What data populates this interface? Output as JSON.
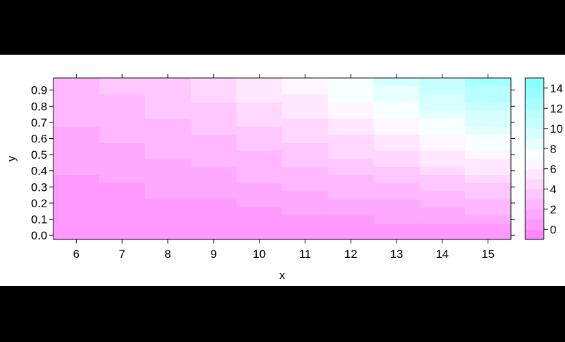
{
  "chart_data": {
    "type": "heatmap",
    "title": "",
    "xlabel": "x",
    "ylabel": "y",
    "x_ticks": [
      6,
      7,
      8,
      9,
      10,
      11,
      12,
      13,
      14,
      15
    ],
    "y_ticks": [
      "0.0",
      "0.1",
      "0.2",
      "0.3",
      "0.4",
      "0.5",
      "0.6",
      "0.7",
      "0.8",
      "0.9"
    ],
    "xlim": [
      5.5,
      15.5
    ],
    "ylim": [
      -0.025,
      0.975
    ],
    "y_values": [
      0.0,
      0.05,
      0.1,
      0.15,
      0.2,
      0.25,
      0.3,
      0.35,
      0.4,
      0.45,
      0.5,
      0.55,
      0.6,
      0.65,
      0.7,
      0.75,
      0.8,
      0.85,
      0.9,
      0.95
    ],
    "z_levels": [
      -1,
      0,
      1,
      2,
      3,
      4,
      5,
      6,
      7,
      8,
      9,
      10,
      11,
      12,
      13,
      14,
      15
    ],
    "colorbar_ticks": [
      0,
      2,
      4,
      6,
      8,
      10,
      12,
      14
    ],
    "color_low": "#ff80ff",
    "color_mid": "#ffffff",
    "color_high": "#80ffff",
    "color_midpoint": 7,
    "z_values": [
      [
        0.0,
        0.1,
        0.2,
        0.3,
        0.5,
        0.6,
        0.8,
        0.9,
        1.1,
        1.2,
        1.4,
        1.5,
        1.7,
        1.8,
        2.0,
        2.1,
        2.3,
        2.4,
        2.6,
        2.7
      ],
      [
        0.0,
        0.1,
        0.3,
        0.4,
        0.6,
        0.8,
        0.9,
        1.1,
        1.3,
        1.5,
        1.6,
        1.8,
        2.0,
        2.2,
        2.4,
        2.5,
        2.7,
        2.9,
        3.1,
        3.3
      ],
      [
        0.0,
        0.2,
        0.4,
        0.6,
        0.8,
        1.0,
        1.2,
        1.4,
        1.6,
        1.8,
        2.0,
        2.2,
        2.4,
        2.6,
        2.8,
        3.0,
        3.3,
        3.5,
        3.7,
        3.9
      ],
      [
        0.0,
        0.2,
        0.5,
        0.7,
        0.9,
        1.2,
        1.4,
        1.7,
        1.9,
        2.2,
        2.4,
        2.7,
        2.9,
        3.2,
        3.4,
        3.7,
        3.9,
        4.2,
        4.5,
        4.7
      ],
      [
        0.0,
        0.3,
        0.6,
        0.8,
        1.1,
        1.4,
        1.7,
        2.0,
        2.3,
        2.6,
        2.9,
        3.2,
        3.5,
        3.8,
        4.1,
        4.4,
        4.7,
        5.0,
        5.3,
        5.6
      ],
      [
        0.0,
        0.3,
        0.7,
        1.0,
        1.4,
        1.7,
        2.1,
        2.4,
        2.8,
        3.1,
        3.5,
        3.8,
        4.2,
        4.5,
        4.9,
        5.2,
        5.6,
        5.9,
        6.3,
        6.6
      ],
      [
        0.0,
        0.4,
        0.8,
        1.2,
        1.6,
        2.0,
        2.4,
        2.8,
        3.3,
        3.7,
        4.1,
        4.5,
        4.9,
        5.3,
        5.7,
        6.1,
        6.6,
        7.0,
        7.4,
        7.8
      ],
      [
        0.0,
        0.5,
        1.0,
        1.4,
        1.9,
        2.4,
        2.9,
        3.4,
        3.8,
        4.3,
        4.8,
        5.3,
        5.8,
        6.2,
        6.7,
        7.2,
        7.7,
        8.2,
        8.6,
        9.1
      ],
      [
        0.0,
        0.6,
        1.1,
        1.7,
        2.3,
        2.8,
        3.4,
        3.9,
        4.5,
        5.1,
        5.6,
        6.2,
        6.8,
        7.3,
        7.9,
        8.4,
        9.0,
        9.6,
        10.1,
        10.7
      ],
      [
        0.0,
        0.7,
        1.3,
        2.0,
        2.6,
        3.3,
        3.9,
        4.6,
        5.2,
        5.9,
        6.6,
        7.2,
        7.9,
        8.5,
        9.2,
        9.8,
        10.5,
        11.1,
        11.8,
        12.5
      ]
    ]
  }
}
